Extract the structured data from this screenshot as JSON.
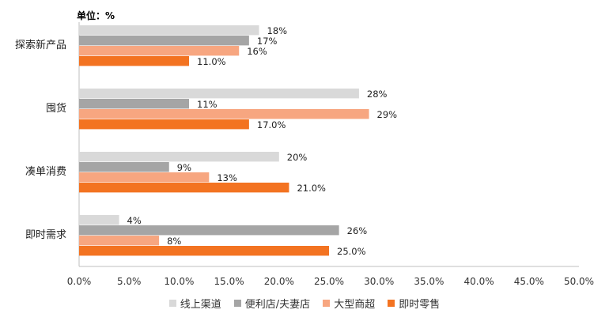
{
  "unit_label": "单位：%",
  "colors": {
    "线上渠道": "#d9d9d9",
    "便利店/夫妻店": "#a5a5a5",
    "大型商超": "#f7a680",
    "即时零售": "#f37321"
  },
  "chart_data": {
    "type": "bar",
    "orientation": "horizontal",
    "categories": [
      "探索新产品",
      "囤货",
      "凑单消费",
      "即时需求"
    ],
    "series": [
      {
        "name": "线上渠道",
        "values": [
          18,
          28,
          20,
          4
        ],
        "labels": [
          "18%",
          "28%",
          "20%",
          "4%"
        ]
      },
      {
        "name": "便利店/夫妻店",
        "values": [
          17,
          11,
          9,
          26
        ],
        "labels": [
          "17%",
          "11%",
          "9%",
          "26%"
        ]
      },
      {
        "name": "大型商超",
        "values": [
          16,
          29,
          13,
          8
        ],
        "labels": [
          "16%",
          "29%",
          "13%",
          "8%"
        ]
      },
      {
        "name": "即时零售",
        "values": [
          11.0,
          17.0,
          21.0,
          25.0
        ],
        "labels": [
          "11.0%",
          "17.0%",
          "21.0%",
          "25.0%"
        ]
      }
    ],
    "xlim": [
      0,
      50
    ],
    "xticks": [
      "0.0%",
      "5.0%",
      "10.0%",
      "15.0%",
      "20.0%",
      "25.0%",
      "30.0%",
      "35.0%",
      "40.0%",
      "45.0%",
      "50.0%"
    ],
    "legend_position": "bottom",
    "grid": false
  }
}
